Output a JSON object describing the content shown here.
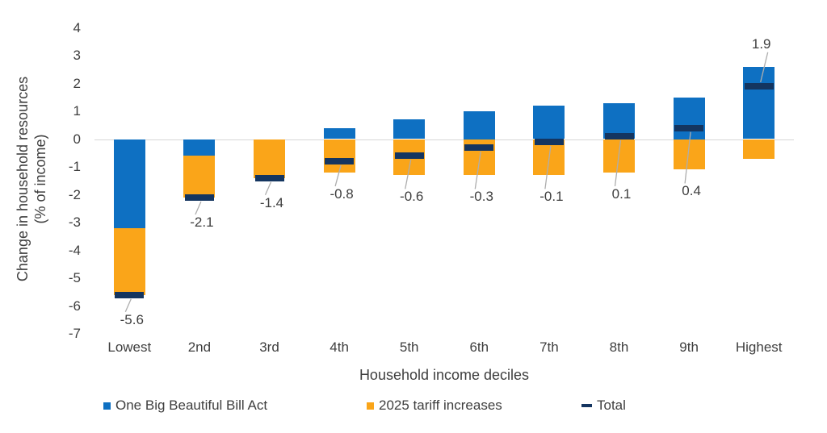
{
  "chart_data": {
    "type": "bar",
    "stacked": true,
    "categories": [
      "Lowest",
      "2nd",
      "3rd",
      "4th",
      "5th",
      "6th",
      "7th",
      "8th",
      "9th",
      "Highest"
    ],
    "series": [
      {
        "name": "One Big Beautiful Bill Act",
        "color": "#0E70C2",
        "values": [
          -3.2,
          -0.6,
          0.0,
          0.4,
          0.7,
          1.0,
          1.2,
          1.3,
          1.5,
          2.6
        ]
      },
      {
        "name": "2025 tariff increases",
        "color": "#FAA519",
        "values": [
          -2.4,
          -1.5,
          -1.4,
          -1.2,
          -1.3,
          -1.3,
          -1.3,
          -1.2,
          -1.1,
          -0.7
        ]
      }
    ],
    "totals": {
      "name": "Total",
      "color": "#143560",
      "values": [
        -5.6,
        -2.1,
        -1.4,
        -0.8,
        -0.6,
        -0.3,
        -0.1,
        0.1,
        0.4,
        1.9
      ],
      "labels": [
        "-5.6",
        "-2.1",
        "-1.4",
        "-0.8",
        "-0.6",
        "-0.3",
        "-0.1",
        "0.1",
        "0.4",
        "1.9"
      ]
    },
    "xlabel": "Household income deciles",
    "ylabel_line1": "Change in household resources",
    "ylabel_line2": "(% of income)",
    "ylim": [
      -7,
      4
    ],
    "y_ticks": [
      4,
      3,
      2,
      1,
      0,
      -1,
      -2,
      -3,
      -4,
      -5,
      -6,
      -7
    ],
    "gridlines": "zero-line-only",
    "legend_position": "bottom"
  },
  "colors": {
    "background": "#FFFFFF",
    "axis_text": "#3E3E3E",
    "zero_line": "#D6D6D6",
    "leader_line": "#ADADAD"
  }
}
